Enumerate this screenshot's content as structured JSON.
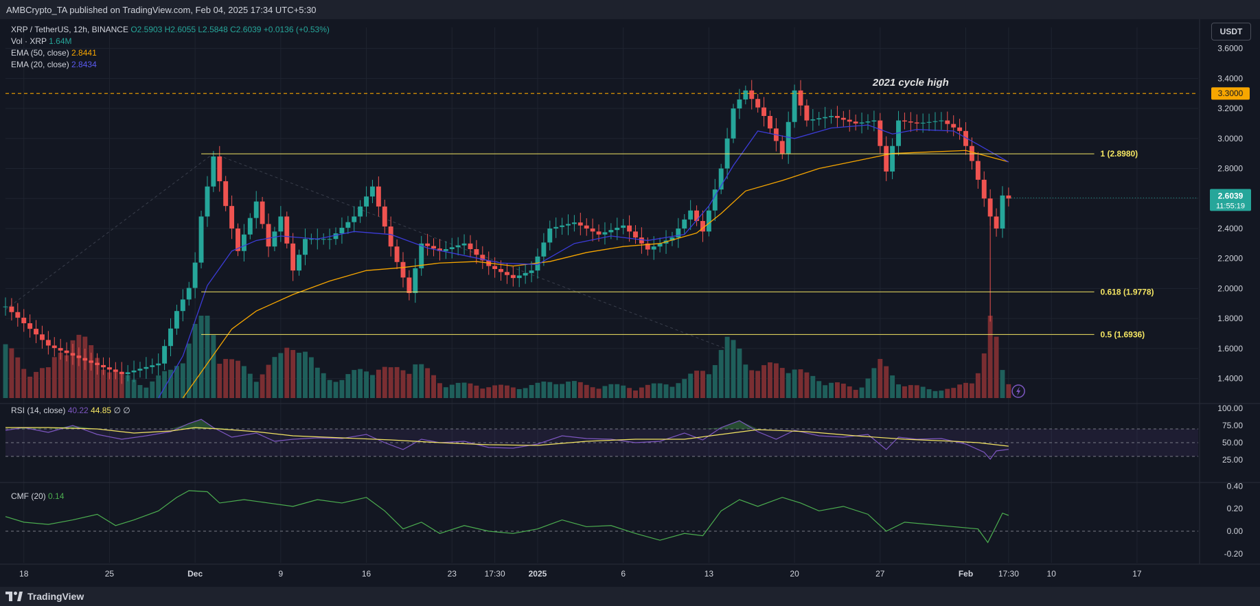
{
  "header": {
    "publisher_text": "AMBCrypto_TA published on TradingView.com, Feb 04, 2025 17:34 UTC+5:30"
  },
  "legend": {
    "symbol": "XRP / TetherUS, 12h, BINANCE",
    "ohlc": "O2.5903 H2.6055 L2.5848 C2.6039 +0.0136 (+0.53%)",
    "vol_label": "Vol · XRP",
    "vol_value": "1.64M",
    "ema50_label": "EMA (50, close)",
    "ema50_value": "2.8441",
    "ema20_label": "EMA (20, close)",
    "ema20_value": "2.8434"
  },
  "currency_button": "USDT",
  "rsi_legend": {
    "label": "RSI (14, close)",
    "value1": "40.22",
    "value2": "44.85",
    "extra": "∅  ∅"
  },
  "cmf_legend": {
    "label": "CMF (20)",
    "value": "0.14"
  },
  "footer": {
    "brand": "TradingView"
  },
  "colors": {
    "up": "#26a69a",
    "down": "#ef5350",
    "ema20": "#3c3cd8",
    "ema50": "#f7a600",
    "fib": "#f5e663",
    "rsi": "#7e57c2",
    "cmf": "#4caf50",
    "bg": "#131722"
  },
  "chart_data": {
    "type": "candlestick",
    "timeframe": "12h",
    "y_ticks": [
      "3.6000",
      "3.4000",
      "3.2000",
      "3.0000",
      "2.8000",
      "2.6000",
      "2.4000",
      "2.2000",
      "2.0000",
      "1.8000",
      "1.6000",
      "1.4000"
    ],
    "y_tick_values": [
      3.6,
      3.4,
      3.2,
      3.0,
      2.8,
      2.6,
      2.4,
      2.2,
      2.0,
      1.8,
      1.6,
      1.4
    ],
    "ylim": [
      1.27,
      3.74
    ],
    "x_ticks": [
      {
        "label": "18",
        "x": 18
      },
      {
        "label": "25",
        "x": 25
      },
      {
        "label": "Dec",
        "x": 32
      },
      {
        "label": "9",
        "x": 39
      },
      {
        "label": "16",
        "x": 46
      },
      {
        "label": "23",
        "x": 53
      },
      {
        "label": "17:30",
        "x": 56.5
      },
      {
        "label": "2025",
        "x": 60
      },
      {
        "label": "6",
        "x": 67
      },
      {
        "label": "13",
        "x": 74
      },
      {
        "label": "20",
        "x": 81
      },
      {
        "label": "27",
        "x": 88
      },
      {
        "label": "Feb",
        "x": 95
      },
      {
        "label": "17:30",
        "x": 98.5
      },
      {
        "label": "10",
        "x": 102
      },
      {
        "label": "17",
        "x": 109
      }
    ],
    "x_day_range": [
      16.5,
      114
    ],
    "price": {
      "last": "2.6039",
      "countdown": "11:55:19",
      "last_value": 2.6039
    },
    "horizontal_levels": [
      {
        "value": 3.3,
        "label": "3.3000",
        "style": "dashed-orange",
        "annotation": "2021 cycle high"
      },
      {
        "value": 2.898,
        "label": "1 (2.8980)",
        "style": "fib",
        "from_x": 32.5
      },
      {
        "value": 1.9778,
        "label": "0.618 (1.9778)",
        "style": "fib",
        "from_x": 32.5
      },
      {
        "value": 1.6936,
        "label": "0.5 (1.6936)",
        "style": "fib",
        "from_x": 32.5
      }
    ],
    "key_points": [
      {
        "x": 16.5,
        "y": 1.88
      },
      {
        "x": 20,
        "y": 1.62
      },
      {
        "x": 23,
        "y": 1.52
      },
      {
        "x": 26,
        "y": 1.43
      },
      {
        "x": 29,
        "y": 1.5
      },
      {
        "x": 30.5,
        "y": 1.85
      },
      {
        "x": 31.8,
        "y": 2.05
      },
      {
        "x": 32.5,
        "y": 2.48
      },
      {
        "x": 33.5,
        "y": 2.88
      },
      {
        "x": 34.5,
        "y": 2.55
      },
      {
        "x": 35.5,
        "y": 2.25
      },
      {
        "x": 37,
        "y": 2.58
      },
      {
        "x": 38,
        "y": 2.28
      },
      {
        "x": 39,
        "y": 2.48
      },
      {
        "x": 40,
        "y": 2.12
      },
      {
        "x": 41,
        "y": 2.33
      },
      {
        "x": 43,
        "y": 2.33
      },
      {
        "x": 45,
        "y": 2.48
      },
      {
        "x": 46.5,
        "y": 2.68
      },
      {
        "x": 48,
        "y": 2.28
      },
      {
        "x": 49.5,
        "y": 1.97
      },
      {
        "x": 50.5,
        "y": 2.3
      },
      {
        "x": 52,
        "y": 2.25
      },
      {
        "x": 54,
        "y": 2.3
      },
      {
        "x": 56,
        "y": 2.15
      },
      {
        "x": 58,
        "y": 2.07
      },
      {
        "x": 59.5,
        "y": 2.12
      },
      {
        "x": 61,
        "y": 2.4
      },
      {
        "x": 63,
        "y": 2.44
      },
      {
        "x": 65,
        "y": 2.36
      },
      {
        "x": 67,
        "y": 2.42
      },
      {
        "x": 69,
        "y": 2.26
      },
      {
        "x": 71,
        "y": 2.34
      },
      {
        "x": 72.5,
        "y": 2.52
      },
      {
        "x": 73.5,
        "y": 2.38
      },
      {
        "x": 75,
        "y": 2.8
      },
      {
        "x": 76,
        "y": 3.2
      },
      {
        "x": 77,
        "y": 3.32
      },
      {
        "x": 78.5,
        "y": 3.15
      },
      {
        "x": 80,
        "y": 2.9
      },
      {
        "x": 81,
        "y": 3.32
      },
      {
        "x": 82,
        "y": 3.12
      },
      {
        "x": 84,
        "y": 3.15
      },
      {
        "x": 86,
        "y": 3.1
      },
      {
        "x": 87.5,
        "y": 3.12
      },
      {
        "x": 88.5,
        "y": 2.78
      },
      {
        "x": 89.5,
        "y": 3.12
      },
      {
        "x": 91,
        "y": 3.1
      },
      {
        "x": 93,
        "y": 3.12
      },
      {
        "x": 94.5,
        "y": 3.05
      },
      {
        "x": 95.5,
        "y": 2.85
      },
      {
        "x": 96.5,
        "y": 2.6
      },
      {
        "x": 97,
        "y": 2.48
      },
      {
        "x": 97.5,
        "y": 2.4
      },
      {
        "x": 98,
        "y": 2.62
      },
      {
        "x": 98.5,
        "y": 2.6
      }
    ],
    "ema20": [
      {
        "x": 29,
        "y": 1.27
      },
      {
        "x": 31,
        "y": 1.55
      },
      {
        "x": 33,
        "y": 2.02
      },
      {
        "x": 35,
        "y": 2.25
      },
      {
        "x": 37,
        "y": 2.32
      },
      {
        "x": 39,
        "y": 2.35
      },
      {
        "x": 42,
        "y": 2.33
      },
      {
        "x": 45,
        "y": 2.38
      },
      {
        "x": 48,
        "y": 2.36
      },
      {
        "x": 51,
        "y": 2.27
      },
      {
        "x": 54,
        "y": 2.22
      },
      {
        "x": 57,
        "y": 2.17
      },
      {
        "x": 60,
        "y": 2.16
      },
      {
        "x": 63,
        "y": 2.3
      },
      {
        "x": 66,
        "y": 2.35
      },
      {
        "x": 69,
        "y": 2.32
      },
      {
        "x": 72,
        "y": 2.36
      },
      {
        "x": 74,
        "y": 2.55
      },
      {
        "x": 76,
        "y": 2.82
      },
      {
        "x": 78,
        "y": 3.05
      },
      {
        "x": 81,
        "y": 3.0
      },
      {
        "x": 84,
        "y": 3.07
      },
      {
        "x": 87,
        "y": 3.09
      },
      {
        "x": 89,
        "y": 3.03
      },
      {
        "x": 91,
        "y": 3.06
      },
      {
        "x": 94,
        "y": 3.05
      },
      {
        "x": 96,
        "y": 2.96
      },
      {
        "x": 98.5,
        "y": 2.8434
      }
    ],
    "ema50": [
      {
        "x": 31,
        "y": 1.27
      },
      {
        "x": 33,
        "y": 1.5
      },
      {
        "x": 35,
        "y": 1.73
      },
      {
        "x": 37,
        "y": 1.85
      },
      {
        "x": 40,
        "y": 1.96
      },
      {
        "x": 43,
        "y": 2.05
      },
      {
        "x": 46,
        "y": 2.12
      },
      {
        "x": 49,
        "y": 2.14
      },
      {
        "x": 52,
        "y": 2.17
      },
      {
        "x": 55,
        "y": 2.18
      },
      {
        "x": 58,
        "y": 2.15
      },
      {
        "x": 61,
        "y": 2.18
      },
      {
        "x": 64,
        "y": 2.24
      },
      {
        "x": 67,
        "y": 2.28
      },
      {
        "x": 70,
        "y": 2.3
      },
      {
        "x": 73,
        "y": 2.37
      },
      {
        "x": 75,
        "y": 2.5
      },
      {
        "x": 77,
        "y": 2.65
      },
      {
        "x": 80,
        "y": 2.72
      },
      {
        "x": 83,
        "y": 2.8
      },
      {
        "x": 86,
        "y": 2.85
      },
      {
        "x": 89,
        "y": 2.9
      },
      {
        "x": 92,
        "y": 2.91
      },
      {
        "x": 95,
        "y": 2.92
      },
      {
        "x": 98.5,
        "y": 2.8441
      }
    ],
    "volume_profile": [
      {
        "x": 16.5,
        "v": 0.55
      },
      {
        "x": 18,
        "v": 0.35
      },
      {
        "x": 20,
        "v": 0.3
      },
      {
        "x": 22,
        "v": 0.75
      },
      {
        "x": 24,
        "v": 0.45
      },
      {
        "x": 26,
        "v": 0.25
      },
      {
        "x": 28,
        "v": 0.15
      },
      {
        "x": 30,
        "v": 0.3
      },
      {
        "x": 32,
        "v": 0.75
      },
      {
        "x": 33,
        "v": 1.0
      },
      {
        "x": 34,
        "v": 0.55
      },
      {
        "x": 35,
        "v": 0.4
      },
      {
        "x": 37,
        "v": 0.25
      },
      {
        "x": 39,
        "v": 0.45
      },
      {
        "x": 40,
        "v": 0.7
      },
      {
        "x": 42,
        "v": 0.3
      },
      {
        "x": 44,
        "v": 0.2
      },
      {
        "x": 46,
        "v": 0.35
      },
      {
        "x": 48,
        "v": 0.3
      },
      {
        "x": 50,
        "v": 0.4
      },
      {
        "x": 52,
        "v": 0.18
      },
      {
        "x": 54,
        "v": 0.15
      },
      {
        "x": 56,
        "v": 0.14
      },
      {
        "x": 58,
        "v": 0.12
      },
      {
        "x": 60,
        "v": 0.15
      },
      {
        "x": 62,
        "v": 0.2
      },
      {
        "x": 64,
        "v": 0.14
      },
      {
        "x": 66,
        "v": 0.14
      },
      {
        "x": 68,
        "v": 0.12
      },
      {
        "x": 70,
        "v": 0.15
      },
      {
        "x": 72,
        "v": 0.2
      },
      {
        "x": 74,
        "v": 0.35
      },
      {
        "x": 75.5,
        "v": 0.6
      },
      {
        "x": 76.5,
        "v": 0.55
      },
      {
        "x": 78,
        "v": 0.3
      },
      {
        "x": 80,
        "v": 0.4
      },
      {
        "x": 82,
        "v": 0.25
      },
      {
        "x": 84,
        "v": 0.18
      },
      {
        "x": 86,
        "v": 0.1
      },
      {
        "x": 88,
        "v": 0.38
      },
      {
        "x": 90,
        "v": 0.15
      },
      {
        "x": 92,
        "v": 0.1
      },
      {
        "x": 94,
        "v": 0.1
      },
      {
        "x": 95.5,
        "v": 0.2
      },
      {
        "x": 96.5,
        "v": 0.5
      },
      {
        "x": 97,
        "v": 1.1
      },
      {
        "x": 97.5,
        "v": 0.6
      },
      {
        "x": 98,
        "v": 0.3
      },
      {
        "x": 98.5,
        "v": 0.18
      }
    ],
    "rsi": {
      "y_ticks": [
        "100.00",
        "75.00",
        "50.00",
        "25.00"
      ],
      "y_tick_values": [
        100,
        75,
        50,
        25
      ],
      "band": [
        30,
        70
      ],
      "line": [
        {
          "x": 16.5,
          "y": 68
        },
        {
          "x": 18,
          "y": 72
        },
        {
          "x": 20,
          "y": 65
        },
        {
          "x": 22,
          "y": 75
        },
        {
          "x": 24,
          "y": 62
        },
        {
          "x": 26,
          "y": 55
        },
        {
          "x": 28,
          "y": 60
        },
        {
          "x": 30,
          "y": 66
        },
        {
          "x": 31.5,
          "y": 78
        },
        {
          "x": 32.5,
          "y": 84
        },
        {
          "x": 33.5,
          "y": 72
        },
        {
          "x": 35,
          "y": 58
        },
        {
          "x": 37,
          "y": 64
        },
        {
          "x": 38.5,
          "y": 52
        },
        {
          "x": 40,
          "y": 55
        },
        {
          "x": 42,
          "y": 57
        },
        {
          "x": 44,
          "y": 56
        },
        {
          "x": 46,
          "y": 62
        },
        {
          "x": 47.5,
          "y": 50
        },
        {
          "x": 49,
          "y": 40
        },
        {
          "x": 50.5,
          "y": 55
        },
        {
          "x": 52,
          "y": 50
        },
        {
          "x": 54,
          "y": 52
        },
        {
          "x": 56,
          "y": 43
        },
        {
          "x": 58,
          "y": 42
        },
        {
          "x": 60,
          "y": 48
        },
        {
          "x": 62,
          "y": 60
        },
        {
          "x": 64,
          "y": 56
        },
        {
          "x": 66,
          "y": 55
        },
        {
          "x": 68,
          "y": 50
        },
        {
          "x": 70,
          "y": 52
        },
        {
          "x": 72,
          "y": 64
        },
        {
          "x": 73.5,
          "y": 54
        },
        {
          "x": 75,
          "y": 72
        },
        {
          "x": 76.5,
          "y": 82
        },
        {
          "x": 78,
          "y": 66
        },
        {
          "x": 79.5,
          "y": 55
        },
        {
          "x": 81,
          "y": 68
        },
        {
          "x": 83,
          "y": 60
        },
        {
          "x": 85,
          "y": 58
        },
        {
          "x": 87,
          "y": 62
        },
        {
          "x": 88.5,
          "y": 40
        },
        {
          "x": 89.5,
          "y": 58
        },
        {
          "x": 91,
          "y": 55
        },
        {
          "x": 93,
          "y": 56
        },
        {
          "x": 95,
          "y": 48
        },
        {
          "x": 96.5,
          "y": 36
        },
        {
          "x": 97,
          "y": 26
        },
        {
          "x": 97.5,
          "y": 38
        },
        {
          "x": 98.5,
          "y": 40.22
        }
      ],
      "ma": [
        {
          "x": 16.5,
          "y": 72
        },
        {
          "x": 20,
          "y": 72
        },
        {
          "x": 24,
          "y": 70
        },
        {
          "x": 27,
          "y": 64
        },
        {
          "x": 30,
          "y": 67
        },
        {
          "x": 32,
          "y": 72
        },
        {
          "x": 34,
          "y": 70
        },
        {
          "x": 37,
          "y": 66
        },
        {
          "x": 40,
          "y": 60
        },
        {
          "x": 44,
          "y": 57
        },
        {
          "x": 48,
          "y": 54
        },
        {
          "x": 52,
          "y": 50
        },
        {
          "x": 56,
          "y": 47
        },
        {
          "x": 60,
          "y": 46
        },
        {
          "x": 64,
          "y": 52
        },
        {
          "x": 68,
          "y": 55
        },
        {
          "x": 72,
          "y": 55
        },
        {
          "x": 75,
          "y": 62
        },
        {
          "x": 78,
          "y": 69
        },
        {
          "x": 82,
          "y": 66
        },
        {
          "x": 86,
          "y": 60
        },
        {
          "x": 90,
          "y": 55
        },
        {
          "x": 94,
          "y": 52
        },
        {
          "x": 96,
          "y": 50
        },
        {
          "x": 98.5,
          "y": 44.85
        }
      ]
    },
    "cmf": {
      "y_ticks": [
        "0.40",
        "0.20",
        "0.00",
        "-0.20"
      ],
      "y_tick_values": [
        0.4,
        0.2,
        0.0,
        -0.2
      ],
      "line": [
        {
          "x": 16.5,
          "y": 0.13
        },
        {
          "x": 18,
          "y": 0.08
        },
        {
          "x": 20,
          "y": 0.06
        },
        {
          "x": 22,
          "y": 0.1
        },
        {
          "x": 24,
          "y": 0.15
        },
        {
          "x": 25.5,
          "y": 0.05
        },
        {
          "x": 27,
          "y": 0.1
        },
        {
          "x": 29,
          "y": 0.18
        },
        {
          "x": 30.5,
          "y": 0.3
        },
        {
          "x": 31.5,
          "y": 0.36
        },
        {
          "x": 33,
          "y": 0.35
        },
        {
          "x": 34,
          "y": 0.25
        },
        {
          "x": 36,
          "y": 0.28
        },
        {
          "x": 38,
          "y": 0.25
        },
        {
          "x": 40,
          "y": 0.22
        },
        {
          "x": 42,
          "y": 0.28
        },
        {
          "x": 44,
          "y": 0.25
        },
        {
          "x": 46,
          "y": 0.3
        },
        {
          "x": 47.5,
          "y": 0.18
        },
        {
          "x": 49,
          "y": 0.02
        },
        {
          "x": 50.5,
          "y": 0.08
        },
        {
          "x": 52,
          "y": -0.02
        },
        {
          "x": 54,
          "y": 0.05
        },
        {
          "x": 56,
          "y": 0.0
        },
        {
          "x": 58,
          "y": -0.02
        },
        {
          "x": 60,
          "y": 0.02
        },
        {
          "x": 62,
          "y": 0.1
        },
        {
          "x": 64,
          "y": 0.04
        },
        {
          "x": 66,
          "y": 0.05
        },
        {
          "x": 68,
          "y": -0.02
        },
        {
          "x": 70,
          "y": -0.08
        },
        {
          "x": 72,
          "y": -0.02
        },
        {
          "x": 73.5,
          "y": -0.04
        },
        {
          "x": 75,
          "y": 0.18
        },
        {
          "x": 76.5,
          "y": 0.28
        },
        {
          "x": 78,
          "y": 0.22
        },
        {
          "x": 80,
          "y": 0.3
        },
        {
          "x": 81.5,
          "y": 0.25
        },
        {
          "x": 83,
          "y": 0.18
        },
        {
          "x": 85,
          "y": 0.22
        },
        {
          "x": 87,
          "y": 0.15
        },
        {
          "x": 88.5,
          "y": 0.0
        },
        {
          "x": 90,
          "y": 0.08
        },
        {
          "x": 92,
          "y": 0.06
        },
        {
          "x": 94,
          "y": 0.04
        },
        {
          "x": 96,
          "y": 0.02
        },
        {
          "x": 96.8,
          "y": -0.1
        },
        {
          "x": 97.5,
          "y": 0.05
        },
        {
          "x": 98,
          "y": 0.16
        },
        {
          "x": 98.5,
          "y": 0.14
        }
      ]
    }
  }
}
